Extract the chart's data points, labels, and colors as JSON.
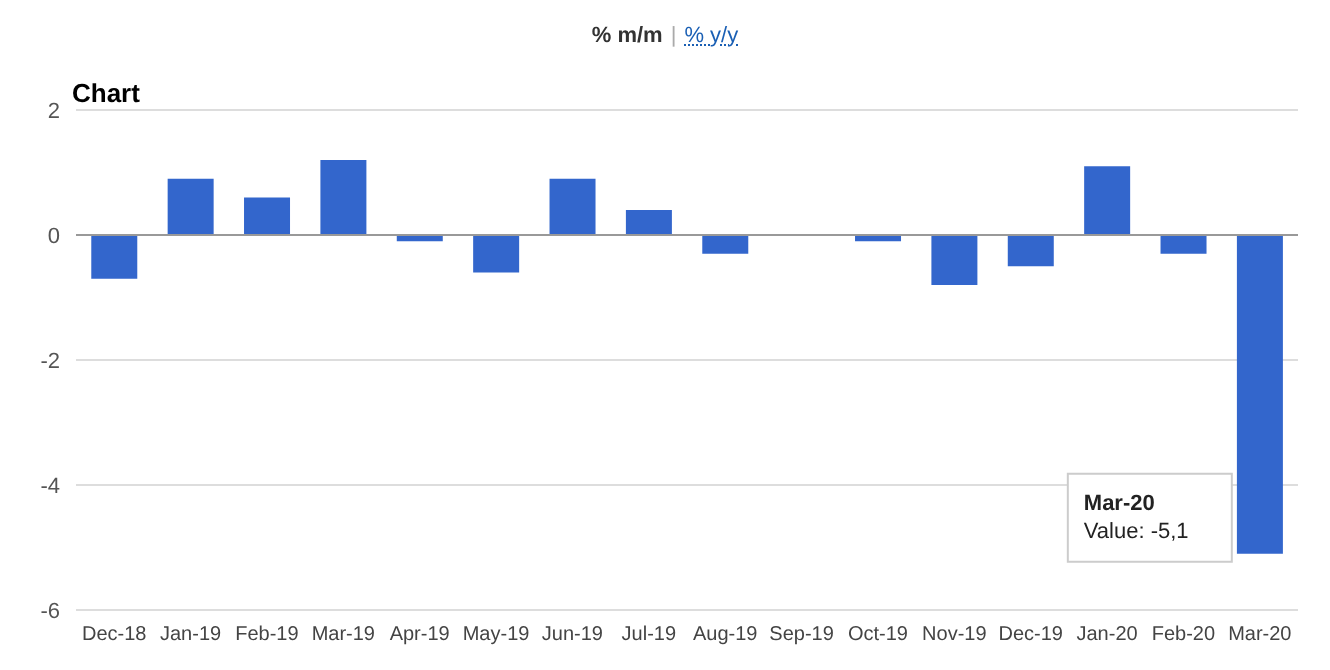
{
  "chart_data": {
    "type": "bar",
    "title": "Chart",
    "categories": [
      "Dec-18",
      "Jan-19",
      "Feb-19",
      "Mar-19",
      "Apr-19",
      "May-19",
      "Jun-19",
      "Jul-19",
      "Aug-19",
      "Sep-19",
      "Oct-19",
      "Nov-19",
      "Dec-19",
      "Jan-20",
      "Feb-20",
      "Mar-20"
    ],
    "values": [
      -0.7,
      0.9,
      0.6,
      1.2,
      -0.1,
      -0.6,
      0.9,
      0.4,
      -0.3,
      0,
      -0.1,
      -0.8,
      -0.5,
      1.1,
      -0.3,
      -5.1
    ],
    "color": "#3366cc",
    "ylim": [
      -6,
      2
    ],
    "yticks": [
      -6,
      -4,
      -2,
      0,
      2
    ],
    "grid": "y",
    "annotations": [
      "% m/m",
      "|",
      "% y/y",
      "Mar-20",
      "Value: -5,1"
    ]
  }
}
